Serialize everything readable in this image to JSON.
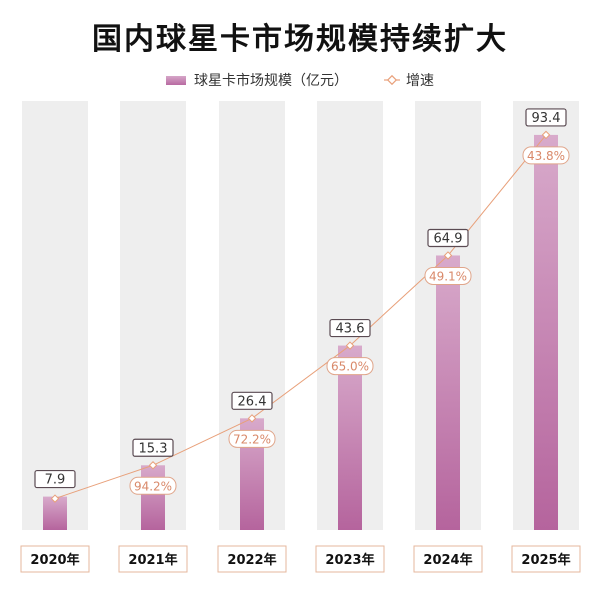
{
  "chart_data": {
    "type": "bar",
    "title": "国内球星卡市场规模持续扩大",
    "categories": [
      "2020年",
      "2021年",
      "2022年",
      "2023年",
      "2024年",
      "2025年"
    ],
    "series": [
      {
        "name": "球星卡市场规模（亿元）",
        "type": "bar",
        "values": [
          7.9,
          15.3,
          26.4,
          43.6,
          64.9,
          93.4
        ]
      },
      {
        "name": "增速",
        "type": "line",
        "values": [
          null,
          94.2,
          72.2,
          65.0,
          49.1,
          43.8
        ],
        "labels": [
          "",
          "94.2%",
          "72.2%",
          "65.0%",
          "49.1%",
          "43.8%"
        ]
      }
    ],
    "ylim": [
      0,
      100
    ],
    "legend_position": "top",
    "colors": {
      "bar_top": "#d8aacb",
      "bar_bottom": "#b5649d",
      "column_bg": "#eeeeee",
      "line": "#e8a07a",
      "value_box_border": "#5a4a52",
      "rate_box_border": "#e0a58a",
      "rate_text": "#d9896a"
    }
  }
}
